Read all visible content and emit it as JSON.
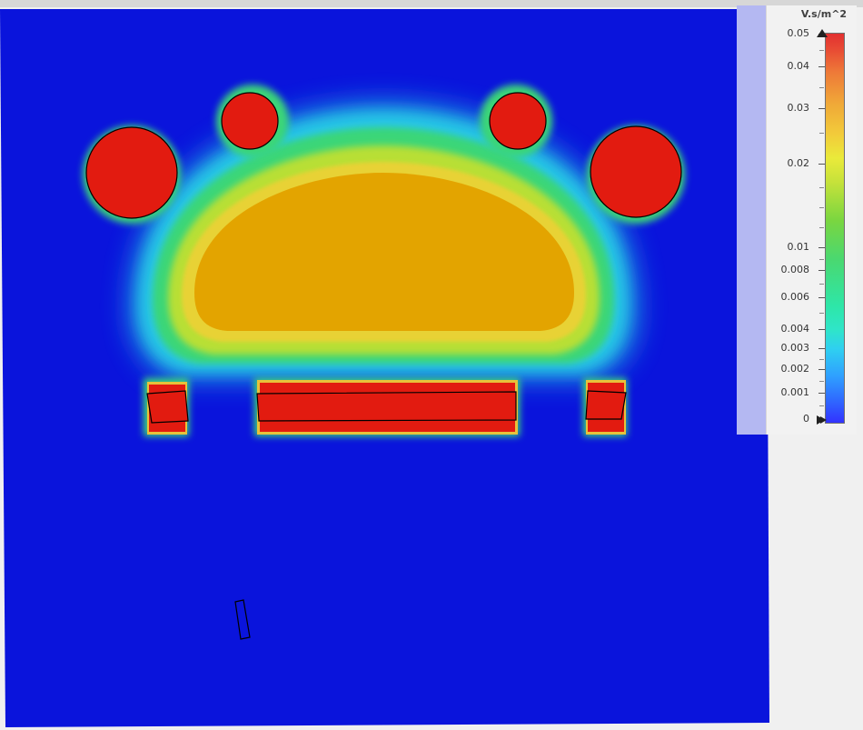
{
  "legend": {
    "unit": "V.s/m^2",
    "ticks": [
      {
        "label": "0.05",
        "value": 0.05
      },
      {
        "label": "0.04",
        "value": 0.04
      },
      {
        "label": "0.03",
        "value": 0.03
      },
      {
        "label": "0.02",
        "value": 0.02
      },
      {
        "label": "0.01",
        "value": 0.01
      },
      {
        "label": "0.008",
        "value": 0.008
      },
      {
        "label": "0.006",
        "value": 0.006
      },
      {
        "label": "0.004",
        "value": 0.004
      },
      {
        "label": "0.003",
        "value": 0.003
      },
      {
        "label": "0.002",
        "value": 0.002
      },
      {
        "label": "0.001",
        "value": 0.001
      },
      {
        "label": "0",
        "value": 0
      }
    ]
  },
  "colors": {
    "background_field": "#0a14dc",
    "max_field": "#e21b10",
    "core_field": "#e3a400",
    "outline": "#000000"
  }
}
